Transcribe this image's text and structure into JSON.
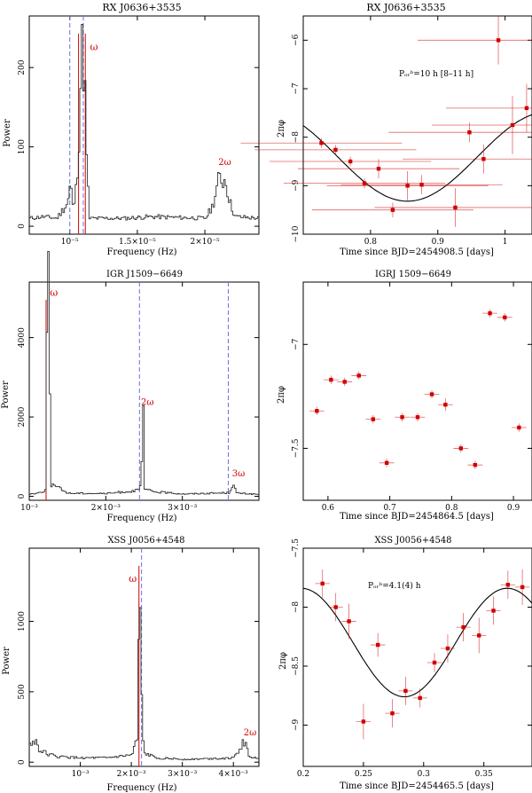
{
  "figure_label": "Power spectra and phase shift curves of three sources",
  "colors": {
    "axis": "#000000",
    "spectrum": "#333333",
    "red": "#d00000",
    "dashed": "#6f6fe0"
  },
  "chart_data": [
    {
      "type": "line",
      "title": "RX J0636+3535",
      "xlabel": "Frequency (Hz)",
      "ylabel": "Power",
      "xlim": [
        7e-06,
        2.4e-05
      ],
      "ylim": [
        -10,
        265
      ],
      "xticks": [
        {
          "v": 1e-05,
          "l": "10⁻⁵"
        },
        {
          "v": 1.5e-05,
          "l": "1.5×10⁻⁵"
        },
        {
          "v": 2e-05,
          "l": "2×10⁻⁵"
        }
      ],
      "yticks": [
        0,
        100,
        200
      ],
      "dashed_lines": [
        1e-05,
        1.1e-05
      ],
      "red_lines": [
        1.065e-05,
        1.115e-05
      ],
      "annotations": [
        {
          "text": "ω",
          "x": 1.15e-05,
          "y": 222
        },
        {
          "text": "2ω",
          "x": 2.1e-05,
          "y": 77
        }
      ],
      "peaks": [
        [
          7e-06,
          10
        ],
        [
          8e-06,
          12
        ],
        [
          9e-06,
          10
        ],
        [
          9.8e-06,
          30
        ],
        [
          1e-05,
          55
        ],
        [
          1.02e-05,
          20
        ],
        [
          1.04e-05,
          45
        ],
        [
          1.06e-05,
          105
        ],
        [
          1.08e-05,
          215
        ],
        [
          1.1e-05,
          215
        ],
        [
          1.12e-05,
          80
        ],
        [
          1.14e-05,
          10
        ],
        [
          1.4e-05,
          10
        ],
        [
          1.6e-05,
          12
        ],
        [
          2e-05,
          10
        ],
        [
          2.05e-05,
          25
        ],
        [
          2.1e-05,
          60
        ],
        [
          2.15e-05,
          58
        ],
        [
          2.18e-05,
          30
        ],
        [
          2.22e-05,
          12
        ],
        [
          2.4e-05,
          10
        ]
      ]
    },
    {
      "type": "scatter",
      "title": "RX J0636+3535",
      "xlabel": "Time since BJD=2454908.5 [days]",
      "ylabel": "2πφ",
      "xlim": [
        0.7,
        1.04
      ],
      "ylim": [
        -10,
        -5.5
      ],
      "xticks": [
        0.8,
        0.9,
        1
      ],
      "yticks": [
        -10,
        -9,
        -8,
        -7,
        -6
      ],
      "annotation": "Pₒᵣᵇ=10 h [8–11 h]",
      "model": {
        "mean": -8.4,
        "amp": 0.92,
        "period_days": 0.4167,
        "min_at": 0.855,
        "x_range": [
          0.7,
          1.04
        ]
      },
      "points": [
        [
          0.727,
          -8.12,
          0.1,
          0.12
        ],
        [
          0.748,
          -8.26,
          0.1,
          0.12
        ],
        [
          0.77,
          -8.5,
          0.1,
          0.12
        ],
        [
          0.791,
          -8.95,
          0.1,
          0.12
        ],
        [
          0.812,
          -8.65,
          0.2,
          0.12
        ],
        [
          0.833,
          -9.5,
          0.15,
          0.12
        ],
        [
          0.855,
          -9.0,
          0.3,
          0.12
        ],
        [
          0.876,
          -8.98,
          0.2,
          0.12
        ],
        [
          0.926,
          -9.45,
          0.4,
          0.12
        ],
        [
          0.947,
          -7.9,
          0.2,
          0.12
        ],
        [
          0.968,
          -8.45,
          0.3,
          0.12
        ],
        [
          0.99,
          -6.0,
          0.5,
          0.12
        ],
        [
          1.011,
          -7.75,
          0.6,
          0.12
        ],
        [
          1.032,
          -7.4,
          0.5,
          0.12
        ]
      ]
    },
    {
      "type": "line",
      "title": "IGR J1509−6649",
      "xlabel": "Frequency (Hz)",
      "ylabel": "Power",
      "xlim": [
        0.001,
        0.004
      ],
      "ylim": [
        -100,
        5400
      ],
      "xticks": [
        {
          "v": 0.001,
          "l": "10⁻³"
        },
        {
          "v": 0.002,
          "l": "2×10⁻³"
        },
        {
          "v": 0.003,
          "l": "3×10⁻³"
        }
      ],
      "yticks": [
        0,
        2000,
        4000
      ],
      "dashed_lines": [
        0.00244,
        0.0036
      ],
      "red_lines": [
        0.00122
      ],
      "annotations": [
        {
          "text": "ω",
          "x": 0.00127,
          "y": 5050
        },
        {
          "text": "2ω",
          "x": 0.00246,
          "y": 2300
        },
        {
          "text": "3ω",
          "x": 0.00365,
          "y": 500
        }
      ],
      "peaks": [
        [
          0.001,
          60
        ],
        [
          0.0011,
          80
        ],
        [
          0.0012,
          150
        ],
        [
          0.00122,
          5300
        ],
        [
          0.00125,
          4800
        ],
        [
          0.00128,
          300
        ],
        [
          0.0015,
          80
        ],
        [
          0.002,
          70
        ],
        [
          0.00243,
          150
        ],
        [
          0.00245,
          350
        ],
        [
          0.00248,
          1950
        ],
        [
          0.0025,
          180
        ],
        [
          0.0026,
          120
        ],
        [
          0.003,
          60
        ],
        [
          0.0036,
          90
        ],
        [
          0.00365,
          330
        ],
        [
          0.0037,
          80
        ],
        [
          0.004,
          50
        ]
      ]
    },
    {
      "type": "scatter",
      "title": "IGRJ 1509−6649",
      "xlabel": "Time since BJD=2454864.5 [days]",
      "ylabel": "2πφ",
      "xlim": [
        0.56,
        0.93
      ],
      "ylim": [
        -7.75,
        -6.7
      ],
      "xticks": [
        0.6,
        0.7,
        0.8,
        0.9
      ],
      "yticks": [
        -7.5,
        -7
      ],
      "points": [
        [
          0.582,
          -7.32,
          0.02,
          0.012
        ],
        [
          0.605,
          -7.17,
          0.02,
          0.012
        ],
        [
          0.627,
          -7.18,
          0.02,
          0.012
        ],
        [
          0.65,
          -7.15,
          0.02,
          0.012
        ],
        [
          0.673,
          -7.36,
          0.02,
          0.012
        ],
        [
          0.695,
          -7.57,
          0.02,
          0.012
        ],
        [
          0.72,
          -7.35,
          0.02,
          0.012
        ],
        [
          0.745,
          -7.35,
          0.02,
          0.012
        ],
        [
          0.768,
          -7.24,
          0.02,
          0.012
        ],
        [
          0.79,
          -7.29,
          0.03,
          0.012
        ],
        [
          0.815,
          -7.5,
          0.02,
          0.012
        ],
        [
          0.838,
          -7.58,
          0.02,
          0.012
        ],
        [
          0.862,
          -6.85,
          0.02,
          0.012
        ],
        [
          0.886,
          -6.87,
          0.02,
          0.012
        ],
        [
          0.909,
          -7.4,
          0.02,
          0.012
        ]
      ]
    },
    {
      "type": "line",
      "title": "XSS J0056+4548",
      "xlabel": "Frequency (Hz)",
      "ylabel": "Power",
      "xlim": [
        0,
        0.0045
      ],
      "ylim": [
        -30,
        1520
      ],
      "xticks": [
        {
          "v": 0.001,
          "l": "10⁻³"
        },
        {
          "v": 0.002,
          "l": "2×10⁻³"
        },
        {
          "v": 0.003,
          "l": "3×10⁻³"
        },
        {
          "v": 0.004,
          "l": "4×10⁻³"
        }
      ],
      "yticks": [
        0,
        500,
        1000
      ],
      "dashed_lines": [
        0.0022
      ],
      "red_lines": [
        0.00215
      ],
      "annotations": [
        {
          "text": "ω",
          "x": 0.00195,
          "y": 1280
        },
        {
          "text": "2ω",
          "x": 0.0042,
          "y": 190
        }
      ],
      "peaks": [
        [
          0,
          120
        ],
        [
          0.0001,
          160
        ],
        [
          0.0002,
          80
        ],
        [
          0.0005,
          40
        ],
        [
          0.001,
          30
        ],
        [
          0.0015,
          30
        ],
        [
          0.002,
          50
        ],
        [
          0.0021,
          160
        ],
        [
          0.00215,
          1180
        ],
        [
          0.0022,
          200
        ],
        [
          0.00225,
          60
        ],
        [
          0.0025,
          30
        ],
        [
          0.003,
          20
        ],
        [
          0.004,
          30
        ],
        [
          0.0042,
          150
        ],
        [
          0.0043,
          40
        ],
        [
          0.0045,
          20
        ]
      ]
    },
    {
      "type": "scatter",
      "title": "XSS J0056+4548",
      "xlabel": "Time since BJD=2454465.5 [days]",
      "ylabel": "2πφ",
      "xlim": [
        0.2,
        0.39
      ],
      "ylim": [
        -9.35,
        -7.5
      ],
      "xticks": [
        0.2,
        0.25,
        0.3,
        0.35
      ],
      "yticks": [
        -9,
        -8.5,
        -8,
        -7.5
      ],
      "annotation": "Pₒᵣᵇ=4.1(4) h",
      "model": {
        "mean": -8.3,
        "amp": 0.46,
        "period_days": 0.1708,
        "min_at": 0.284,
        "x_range": [
          0.2,
          0.39
        ]
      },
      "points": [
        [
          0.216,
          -7.8,
          0.12,
          0.006
        ],
        [
          0.227,
          -8.0,
          0.12,
          0.006
        ],
        [
          0.238,
          -8.12,
          0.15,
          0.006
        ],
        [
          0.25,
          -8.97,
          0.15,
          0.006
        ],
        [
          0.262,
          -8.32,
          0.1,
          0.006
        ],
        [
          0.274,
          -8.9,
          0.12,
          0.006
        ],
        [
          0.285,
          -8.71,
          0.12,
          0.006
        ],
        [
          0.297,
          -8.77,
          0.08,
          0.006
        ],
        [
          0.309,
          -8.47,
          0.08,
          0.006
        ],
        [
          0.32,
          -8.35,
          0.12,
          0.006
        ],
        [
          0.333,
          -8.17,
          0.12,
          0.006
        ],
        [
          0.346,
          -8.24,
          0.15,
          0.006
        ],
        [
          0.358,
          -8.03,
          0.12,
          0.006
        ],
        [
          0.37,
          -7.81,
          0.12,
          0.006
        ],
        [
          0.382,
          -7.83,
          0.15,
          0.006
        ]
      ]
    }
  ]
}
